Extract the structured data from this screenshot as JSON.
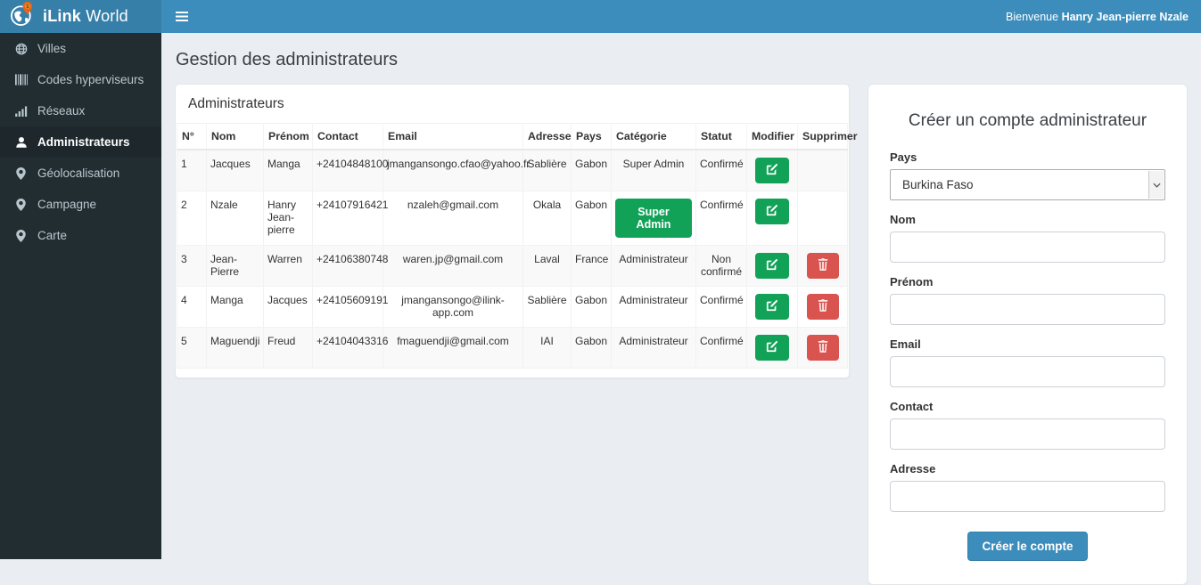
{
  "header": {
    "brand_bold": "iLink",
    "brand_regular": " World",
    "welcome_prefix": "Bienvenue ",
    "welcome_name": "Hanry Jean-pierre Nzale"
  },
  "sidebar": {
    "items": [
      {
        "label": "Villes",
        "icon": "globe-icon",
        "active": false
      },
      {
        "label": "Codes hyperviseurs",
        "icon": "barcode-icon",
        "active": false
      },
      {
        "label": "Réseaux",
        "icon": "signal-icon",
        "active": false
      },
      {
        "label": "Administrateurs",
        "icon": "user-icon",
        "active": true
      },
      {
        "label": "Géolocalisation",
        "icon": "map-marker-icon",
        "active": false
      },
      {
        "label": "Campagne",
        "icon": "map-marker-icon",
        "active": false
      },
      {
        "label": "Carte",
        "icon": "map-marker-icon",
        "active": false
      }
    ]
  },
  "main": {
    "page_title": "Gestion des administrateurs",
    "panel_title": "Administrateurs",
    "table": {
      "headers": [
        "N°",
        "Nom",
        "Prénom",
        "Contact",
        "Email",
        "Adresse",
        "Pays",
        "Catégorie",
        "Statut",
        "Modifier",
        "Supprimer"
      ],
      "rows": [
        {
          "num": "1",
          "nom": "Jacques",
          "prenom": "Manga",
          "contact": "+24104848100",
          "email": "jmangansongo.cfao@yahoo.fr",
          "adresse": "Sablière",
          "pays": "Gabon",
          "categorie": "Super Admin",
          "categorie_style": "text",
          "statut": "Confirmé",
          "can_delete": false
        },
        {
          "num": "2",
          "nom": "Nzale",
          "prenom": "Hanry Jean-pierre",
          "contact": "+24107916421",
          "email": "nzaleh@gmail.com",
          "adresse": "Okala",
          "pays": "Gabon",
          "categorie": "Super Admin",
          "categorie_style": "button",
          "statut": "Confirmé",
          "can_delete": false
        },
        {
          "num": "3",
          "nom": "Jean-Pierre",
          "prenom": "Warren",
          "contact": "+24106380748",
          "email": "waren.jp@gmail.com",
          "adresse": "Laval",
          "pays": "France",
          "categorie": "Administrateur",
          "categorie_style": "text",
          "statut": "Non confirmé",
          "can_delete": true
        },
        {
          "num": "4",
          "nom": "Manga",
          "prenom": "Jacques",
          "contact": "+24105609191",
          "email": "jmangansongo@ilink-app.com",
          "adresse": "Sablière",
          "pays": "Gabon",
          "categorie": "Administrateur",
          "categorie_style": "text",
          "statut": "Confirmé",
          "can_delete": true
        },
        {
          "num": "5",
          "nom": "Maguendji",
          "prenom": "Freud",
          "contact": "+24104043316",
          "email": "fmaguendji@gmail.com",
          "adresse": "IAI",
          "pays": "Gabon",
          "categorie": "Administrateur",
          "categorie_style": "text",
          "statut": "Confirmé",
          "can_delete": true
        }
      ]
    }
  },
  "form": {
    "title": "Créer un compte administrateur",
    "fields": [
      {
        "label": "Pays",
        "type": "select",
        "value": "Burkina Faso",
        "name": "pays-select"
      },
      {
        "label": "Nom",
        "type": "text",
        "value": "",
        "name": "nom-field"
      },
      {
        "label": "Prénom",
        "type": "text",
        "value": "",
        "name": "prenom-field"
      },
      {
        "label": "Email",
        "type": "text",
        "value": "",
        "name": "email-field"
      },
      {
        "label": "Contact",
        "type": "text",
        "value": "",
        "name": "contact-field"
      },
      {
        "label": "Adresse",
        "type": "text",
        "value": "",
        "name": "adresse-field"
      }
    ],
    "submit_label": "Créer le compte"
  },
  "colors": {
    "navbar_blue": "#3c8dbc",
    "logo_blue": "#367fa9",
    "sidebar_dark": "#222d32",
    "sidebar_active": "#1e282c",
    "success_green": "#11a258",
    "danger_red": "#d9534f",
    "content_bg": "#eaedf2",
    "pin_orange": "#e8641b"
  }
}
